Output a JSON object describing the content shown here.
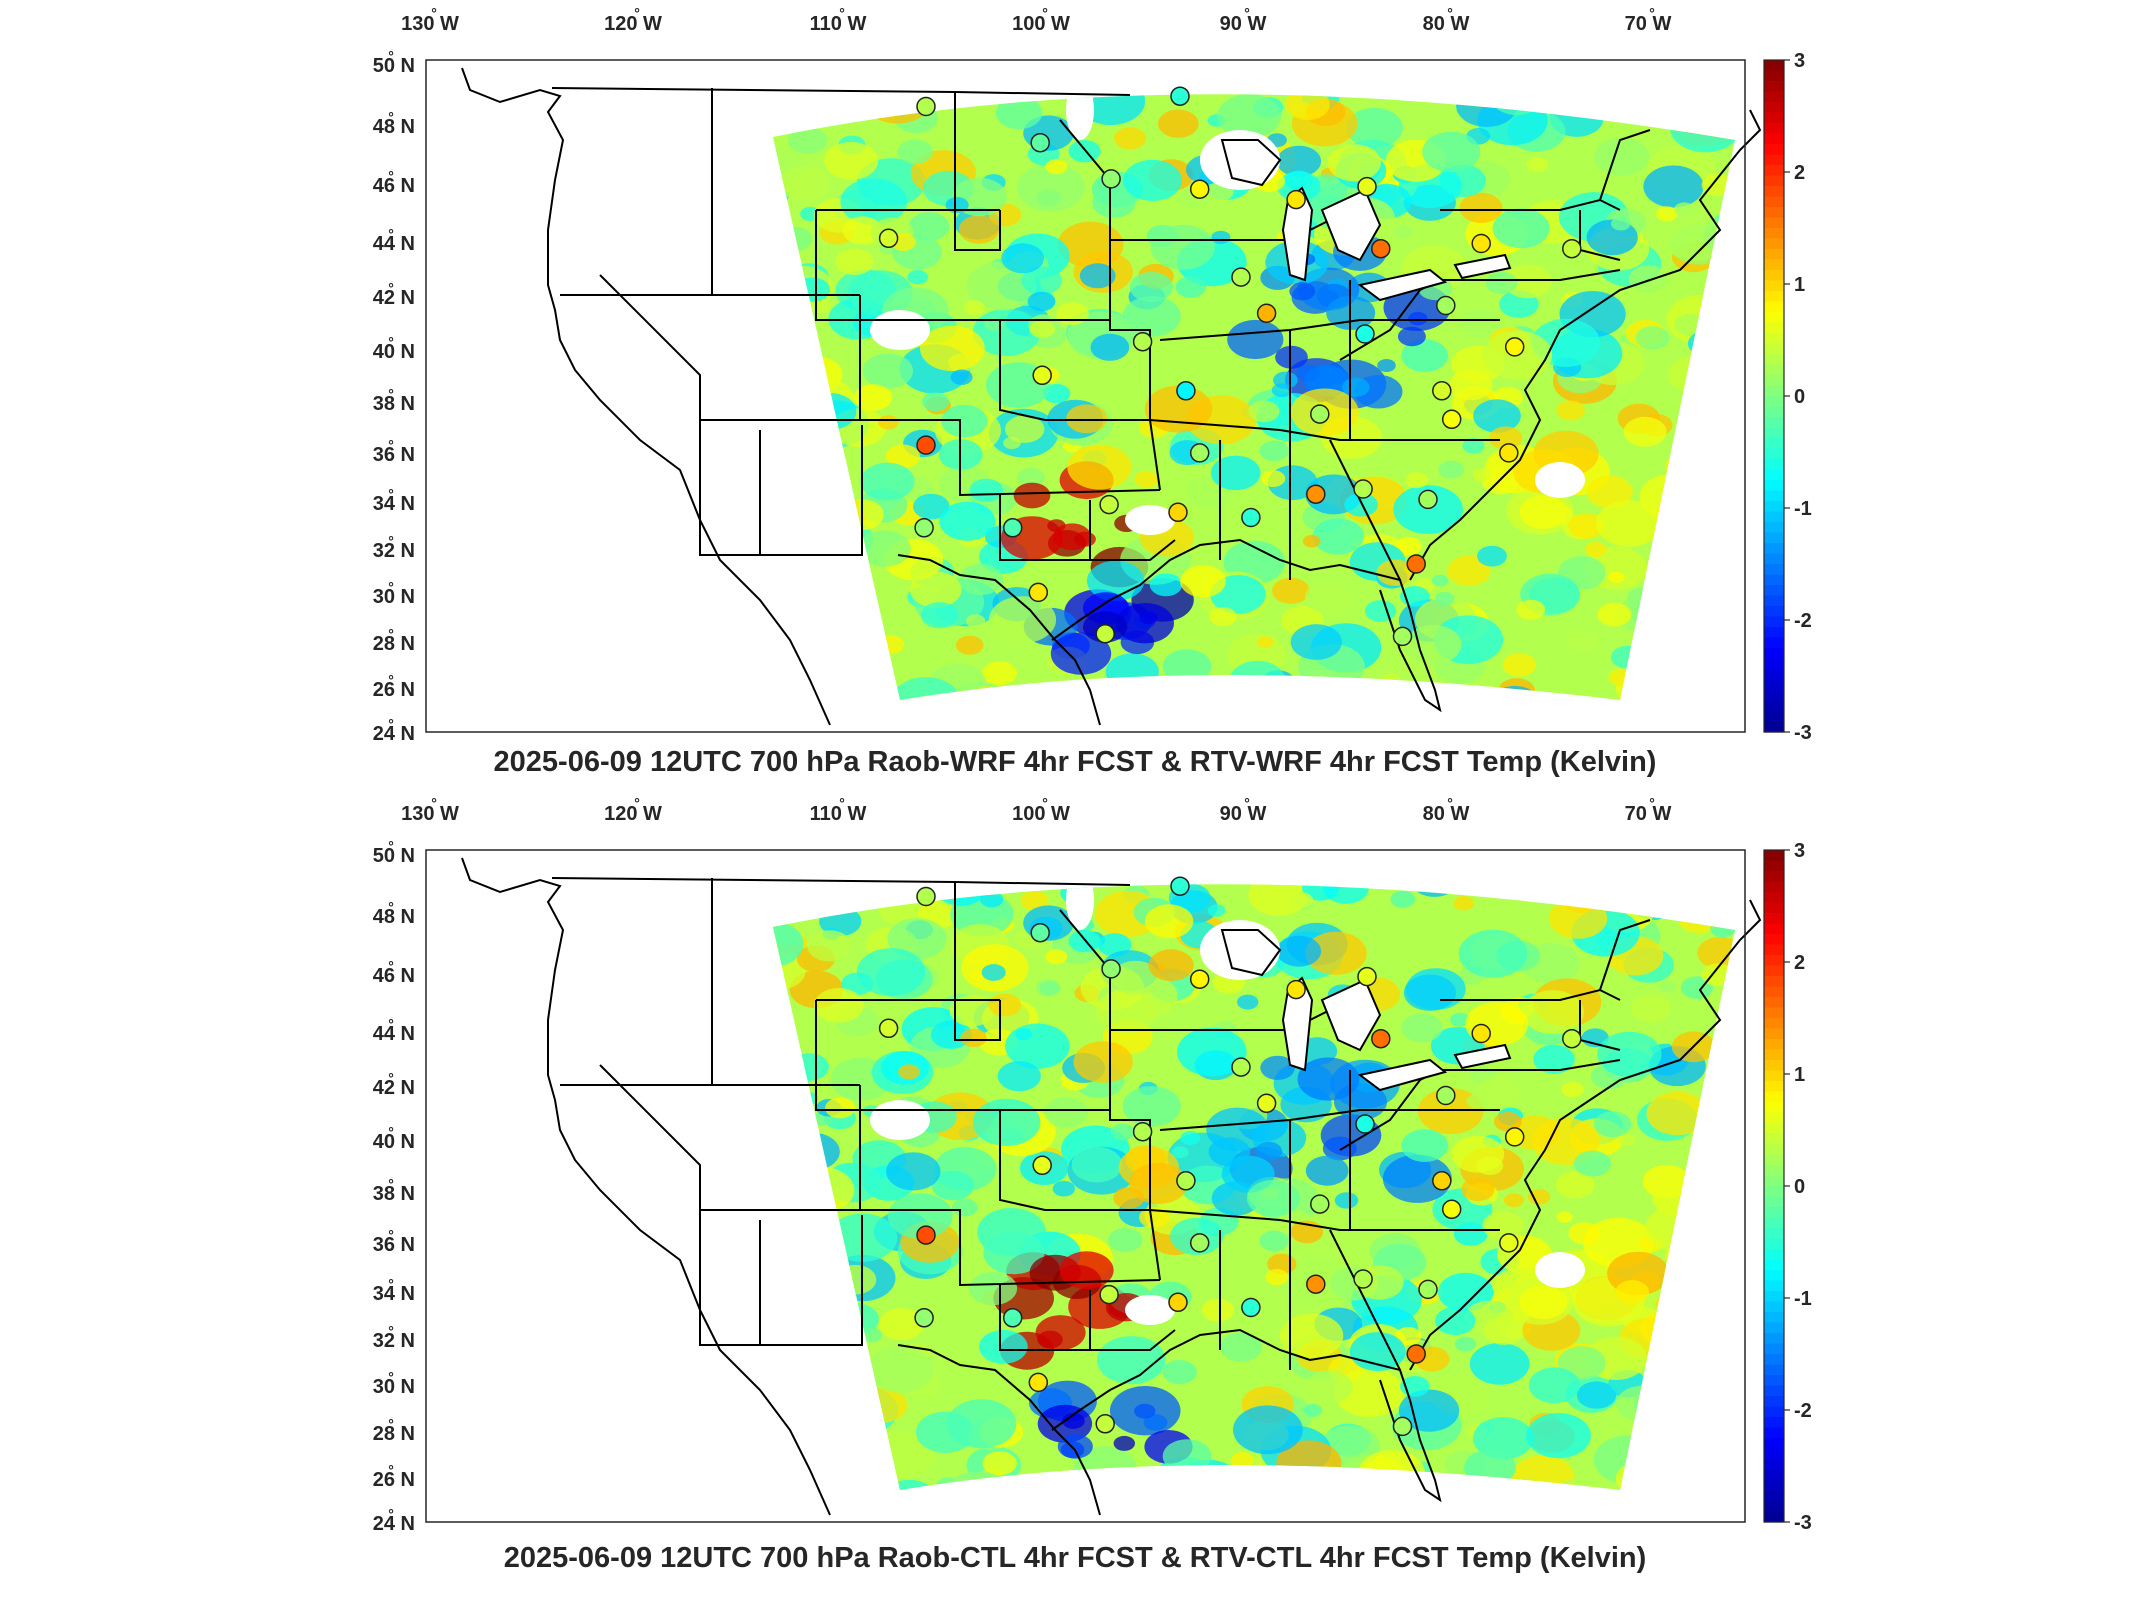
{
  "figure": {
    "panels": [
      {
        "title": "2025-06-09 12UTC 700 hPa Raob-WRF 4hr FCST & RTV-WRF 4hr FCST Temp (Kelvin)"
      },
      {
        "title": "2025-06-09 12UTC 700 hPa Raob-CTL 4hr FCST & RTV-CTL 4hr FCST Temp (Kelvin)"
      }
    ],
    "lon_ticks": [
      "130",
      "120",
      "110",
      "100",
      "90",
      "80",
      "70"
    ],
    "lon_suffix": "W",
    "lat_ticks": [
      "24",
      "26",
      "28",
      "30",
      "32",
      "34",
      "36",
      "38",
      "40",
      "42",
      "44",
      "46",
      "48",
      "50"
    ],
    "lat_suffix": "N",
    "degree_symbol": "°",
    "colorbar": {
      "ticks": [
        "3",
        "2",
        "1",
        "0",
        "-1",
        "-2",
        "-3"
      ],
      "range": [
        -3,
        3
      ],
      "colormap": "jet",
      "colors": [
        "#00008f",
        "#0000ff",
        "#0080ff",
        "#00ffff",
        "#80ff80",
        "#ffff00",
        "#ff8000",
        "#ff0000",
        "#800000"
      ]
    }
  },
  "chart_data": [
    {
      "type": "heatmap",
      "title": "2025-06-09 12UTC 700 hPa Raob-WRF 4hr FCST & RTV-WRF 4hr FCST Temp (Kelvin)",
      "xlim": [
        -132,
        -65
      ],
      "ylim": [
        24,
        50
      ],
      "clim": [
        -3,
        3
      ],
      "grid": false,
      "raob_points": [
        {
          "lon": -106.6,
          "lat": 48.2,
          "value": 0.3
        },
        {
          "lon": -100.8,
          "lat": 46.8,
          "value": -0.2
        },
        {
          "lon": -97.2,
          "lat": 45.4,
          "value": 0.1
        },
        {
          "lon": -93.7,
          "lat": 48.6,
          "value": -0.5
        },
        {
          "lon": -92.7,
          "lat": 45.0,
          "value": 0.8
        },
        {
          "lon": -108.5,
          "lat": 43.1,
          "value": 0.5
        },
        {
          "lon": -87.8,
          "lat": 44.6,
          "value": 0.9
        },
        {
          "lon": -84.2,
          "lat": 45.1,
          "value": 0.6
        },
        {
          "lon": -83.5,
          "lat": 42.7,
          "value": 1.6
        },
        {
          "lon": -78.4,
          "lat": 42.9,
          "value": 0.9
        },
        {
          "lon": -73.8,
          "lat": 42.7,
          "value": 0.4
        },
        {
          "lon": -90.6,
          "lat": 41.6,
          "value": 0.3
        },
        {
          "lon": -89.3,
          "lat": 40.2,
          "value": 1.2
        },
        {
          "lon": -84.3,
          "lat": 39.4,
          "value": -0.6
        },
        {
          "lon": -80.2,
          "lat": 40.5,
          "value": 0.2
        },
        {
          "lon": -76.7,
          "lat": 38.9,
          "value": 0.8
        },
        {
          "lon": -95.6,
          "lat": 39.1,
          "value": 0.3
        },
        {
          "lon": -100.7,
          "lat": 37.8,
          "value": 0.6
        },
        {
          "lon": -93.4,
          "lat": 37.2,
          "value": -0.8
        },
        {
          "lon": -86.6,
          "lat": 36.3,
          "value": 0.2
        },
        {
          "lon": -80.4,
          "lat": 37.2,
          "value": 0.5
        },
        {
          "lon": -79.9,
          "lat": 36.1,
          "value": 0.7
        },
        {
          "lon": -77.0,
          "lat": 34.8,
          "value": 0.9
        },
        {
          "lon": -106.6,
          "lat": 35.1,
          "value": 1.8
        },
        {
          "lon": -106.7,
          "lat": 31.9,
          "value": 0.1
        },
        {
          "lon": -102.2,
          "lat": 31.9,
          "value": -0.3
        },
        {
          "lon": -97.3,
          "lat": 32.8,
          "value": 0.4
        },
        {
          "lon": -93.8,
          "lat": 32.5,
          "value": 1.0
        },
        {
          "lon": -92.7,
          "lat": 34.8,
          "value": 0.2
        },
        {
          "lon": -90.1,
          "lat": 32.3,
          "value": -0.5
        },
        {
          "lon": -86.8,
          "lat": 33.2,
          "value": 1.4
        },
        {
          "lon": -84.4,
          "lat": 33.4,
          "value": 0.3
        },
        {
          "lon": -81.1,
          "lat": 33.0,
          "value": 0.2
        },
        {
          "lon": -81.7,
          "lat": 30.5,
          "value": 1.6
        },
        {
          "lon": -82.4,
          "lat": 27.7,
          "value": 0.2
        },
        {
          "lon": -100.9,
          "lat": 29.4,
          "value": 0.9
        },
        {
          "lon": -97.5,
          "lat": 27.8,
          "value": 0.4
        }
      ]
    },
    {
      "type": "heatmap",
      "title": "2025-06-09 12UTC 700 hPa Raob-CTL 4hr FCST & RTV-CTL 4hr FCST Temp (Kelvin)",
      "xlim": [
        -132,
        -65
      ],
      "ylim": [
        24,
        50
      ],
      "clim": [
        -3,
        3
      ],
      "grid": false,
      "raob_points": [
        {
          "lon": -106.6,
          "lat": 48.2,
          "value": 0.3
        },
        {
          "lon": -100.8,
          "lat": 46.8,
          "value": -0.2
        },
        {
          "lon": -97.2,
          "lat": 45.4,
          "value": 0.1
        },
        {
          "lon": -93.7,
          "lat": 48.6,
          "value": -0.5
        },
        {
          "lon": -92.7,
          "lat": 45.0,
          "value": 0.8
        },
        {
          "lon": -108.5,
          "lat": 43.1,
          "value": 0.5
        },
        {
          "lon": -87.8,
          "lat": 44.6,
          "value": 0.9
        },
        {
          "lon": -84.2,
          "lat": 45.1,
          "value": 0.6
        },
        {
          "lon": -83.5,
          "lat": 42.7,
          "value": 1.6
        },
        {
          "lon": -78.4,
          "lat": 42.9,
          "value": 0.9
        },
        {
          "lon": -73.8,
          "lat": 42.7,
          "value": 0.4
        },
        {
          "lon": -90.6,
          "lat": 41.6,
          "value": 0.3
        },
        {
          "lon": -89.3,
          "lat": 40.2,
          "value": 0.6
        },
        {
          "lon": -84.3,
          "lat": 39.4,
          "value": -0.6
        },
        {
          "lon": -80.2,
          "lat": 40.5,
          "value": 0.2
        },
        {
          "lon": -76.7,
          "lat": 38.9,
          "value": 0.8
        },
        {
          "lon": -95.6,
          "lat": 39.1,
          "value": 0.3
        },
        {
          "lon": -100.7,
          "lat": 37.8,
          "value": 0.6
        },
        {
          "lon": -93.4,
          "lat": 37.2,
          "value": 0.3
        },
        {
          "lon": -86.6,
          "lat": 36.3,
          "value": 0.2
        },
        {
          "lon": -80.4,
          "lat": 37.2,
          "value": 1.0
        },
        {
          "lon": -79.9,
          "lat": 36.1,
          "value": 0.7
        },
        {
          "lon": -77.0,
          "lat": 34.8,
          "value": 0.6
        },
        {
          "lon": -106.6,
          "lat": 35.1,
          "value": 1.8
        },
        {
          "lon": -106.7,
          "lat": 31.9,
          "value": 0.1
        },
        {
          "lon": -102.2,
          "lat": 31.9,
          "value": -0.3
        },
        {
          "lon": -97.3,
          "lat": 32.8,
          "value": 0.4
        },
        {
          "lon": -93.8,
          "lat": 32.5,
          "value": 1.0
        },
        {
          "lon": -92.7,
          "lat": 34.8,
          "value": 0.2
        },
        {
          "lon": -90.1,
          "lat": 32.3,
          "value": -0.5
        },
        {
          "lon": -86.8,
          "lat": 33.2,
          "value": 1.4
        },
        {
          "lon": -84.4,
          "lat": 33.4,
          "value": 0.3
        },
        {
          "lon": -81.1,
          "lat": 33.0,
          "value": 0.2
        },
        {
          "lon": -81.7,
          "lat": 30.5,
          "value": 1.6
        },
        {
          "lon": -82.4,
          "lat": 27.7,
          "value": 0.2
        },
        {
          "lon": -100.9,
          "lat": 29.4,
          "value": 0.9
        },
        {
          "lon": -97.5,
          "lat": 27.8,
          "value": 0.4
        }
      ]
    }
  ]
}
